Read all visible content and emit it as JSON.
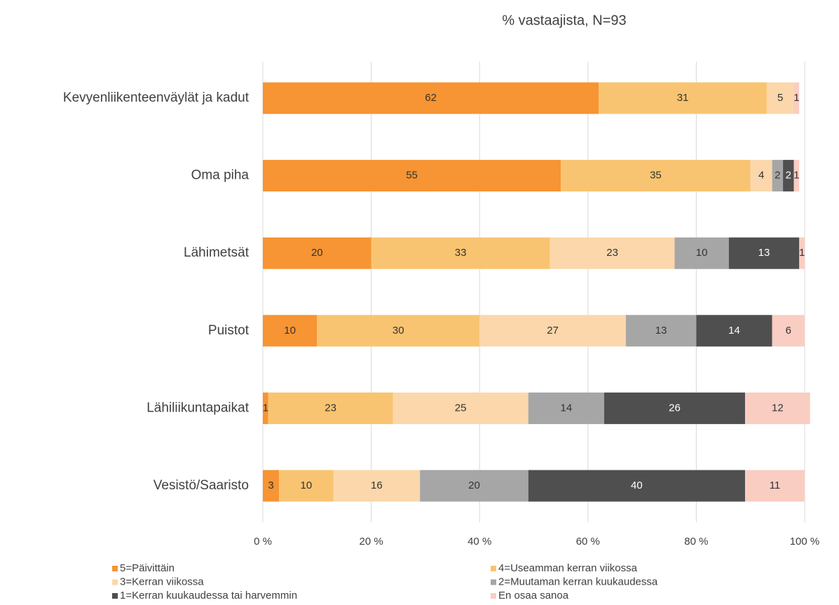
{
  "chart_data": {
    "type": "stacked-barh",
    "title": "% vastaajista, N=93",
    "categories": [
      "Kevyenliikenteenväylät ja kadut",
      "Oma piha",
      "Lähimetsät",
      "Puistot",
      "Lähiliikuntapaikat",
      "Vesistö/Saaristo"
    ],
    "series": [
      {
        "name": "5=Päivittäin",
        "color": "#f79433",
        "values": [
          62,
          55,
          20,
          10,
          1,
          3
        ]
      },
      {
        "name": "4=Useamman kerran viikossa",
        "color": "#f9c471",
        "values": [
          31,
          35,
          33,
          30,
          23,
          10
        ]
      },
      {
        "name": "3=Kerran viikossa",
        "color": "#fbd7ab",
        "values": [
          5,
          4,
          23,
          27,
          25,
          16
        ]
      },
      {
        "name": "2=Muutaman kerran kuukaudessa",
        "color": "#a6a6a6",
        "values": [
          null,
          2,
          10,
          13,
          14,
          20
        ]
      },
      {
        "name": "1=Kerran kuukaudessa tai harvemmin",
        "color": "#4f4f4f",
        "values": [
          null,
          2,
          13,
          14,
          26,
          40
        ]
      },
      {
        "name": "En osaa sanoa",
        "color": "#f9cdc2",
        "values": [
          1,
          1,
          1,
          6,
          12,
          11
        ]
      }
    ],
    "xlim": [
      0,
      100
    ],
    "xticks": [
      {
        "value": 0,
        "label": "0 %"
      },
      {
        "value": 20,
        "label": "20 %"
      },
      {
        "value": 40,
        "label": "40 %"
      },
      {
        "value": 60,
        "label": "60 %"
      },
      {
        "value": 80,
        "label": "80 %"
      },
      {
        "value": 100,
        "label": "100 %"
      }
    ],
    "grid": true
  }
}
